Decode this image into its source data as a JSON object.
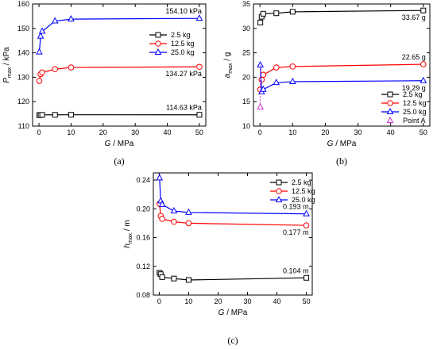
{
  "chart_data": [
    {
      "type": "line",
      "panel_label": "(a)",
      "xlabel_var": "G",
      "xlabel_unit": " / MPa",
      "ylabel_var": "P",
      "ylabel_sub": "max",
      "ylabel_unit": " / kPa",
      "xlim": [
        -2,
        52
      ],
      "ylim": [
        110,
        160
      ],
      "xticks": [
        0,
        10,
        20,
        30,
        40,
        50
      ],
      "yticks": [
        110,
        120,
        130,
        140,
        150,
        160
      ],
      "legend_position": "right",
      "series": [
        {
          "name": "2.5 kg",
          "color": "#000000",
          "marker": "square",
          "x": [
            0.1,
            0.5,
            1,
            5,
            10,
            50
          ],
          "y": [
            114.5,
            114.55,
            114.6,
            114.62,
            114.65,
            114.63
          ]
        },
        {
          "name": "12.5 kg",
          "color": "#ff0000",
          "marker": "circle",
          "x": [
            0.1,
            0.5,
            1,
            5,
            10,
            50
          ],
          "y": [
            128.5,
            131.3,
            132.0,
            133.3,
            134.0,
            134.27
          ]
        },
        {
          "name": "25.0 kg",
          "color": "#0000ff",
          "marker": "triangle",
          "x": [
            0.1,
            0.5,
            1,
            5,
            10,
            50
          ],
          "y": [
            140.3,
            146.8,
            148.8,
            153.0,
            153.8,
            154.1
          ]
        }
      ],
      "annotations": [
        {
          "text": "154.10 kPa",
          "x": 50,
          "y": 154.1,
          "side": "above"
        },
        {
          "text": "134.27 kPa",
          "x": 50,
          "y": 134.27,
          "side": "below"
        },
        {
          "text": "114.63 kPa",
          "x": 50,
          "y": 114.63,
          "side": "above"
        }
      ]
    },
    {
      "type": "line",
      "panel_label": "(b)",
      "xlabel_var": "G",
      "xlabel_unit": " / MPa",
      "ylabel_var": "a",
      "ylabel_sub": "max",
      "ylabel_unit": " / g",
      "xlim": [
        -2,
        52
      ],
      "ylim": [
        10,
        35
      ],
      "xticks": [
        0,
        10,
        20,
        30,
        40,
        50
      ],
      "yticks": [
        10,
        15,
        20,
        25,
        30,
        35
      ],
      "legend_position": "bottom-right",
      "series": [
        {
          "name": "2.5 kg",
          "color": "#000000",
          "marker": "square",
          "x": [
            0.1,
            0.5,
            1,
            5,
            10,
            50
          ],
          "y": [
            31.2,
            32.4,
            33.0,
            33.1,
            33.4,
            33.67
          ]
        },
        {
          "name": "12.5 kg",
          "color": "#ff0000",
          "marker": "circle",
          "x": [
            0.1,
            0.5,
            1,
            5,
            10,
            50
          ],
          "y": [
            17.5,
            19.5,
            20.5,
            22.0,
            22.2,
            22.65
          ]
        },
        {
          "name": "25.0 kg",
          "color": "#0000ff",
          "marker": "triangle",
          "x": [
            0.1,
            0.5,
            1,
            5,
            10,
            50
          ],
          "y": [
            22.5,
            17.0,
            17.5,
            18.9,
            19.1,
            19.29
          ]
        },
        {
          "name": "Point A",
          "color": "#cc33cc",
          "marker": "triangle-open",
          "dashed_to_series": 2,
          "x": [
            0.1
          ],
          "y": [
            13.9
          ]
        }
      ],
      "annotations": [
        {
          "text": "33.67 g",
          "x": 50,
          "y": 33.67,
          "side": "below"
        },
        {
          "text": "22.65 g",
          "x": 50,
          "y": 22.65,
          "side": "above"
        },
        {
          "text": "19.29 g",
          "x": 50,
          "y": 19.29,
          "side": "below"
        }
      ]
    },
    {
      "type": "line",
      "panel_label": "(c)",
      "xlabel_var": "G",
      "xlabel_unit": " / MPa",
      "ylabel_var": "h",
      "ylabel_sub": "max",
      "ylabel_unit": " / m",
      "xlim": [
        -2,
        52
      ],
      "ylim": [
        0.08,
        0.25
      ],
      "xticks": [
        0,
        10,
        20,
        30,
        40,
        50
      ],
      "yticks": [
        0.08,
        0.12,
        0.16,
        0.2,
        0.24
      ],
      "ytick_labels": [
        "0.08",
        "0.12",
        "0.16",
        "0.20",
        "0.24"
      ],
      "legend_position": "top-right",
      "series": [
        {
          "name": "2.5 kg",
          "color": "#000000",
          "marker": "square",
          "x": [
            0.1,
            0.5,
            1,
            5,
            10,
            50
          ],
          "y": [
            0.111,
            0.109,
            0.105,
            0.103,
            0.101,
            0.104
          ]
        },
        {
          "name": "12.5 kg",
          "color": "#ff0000",
          "marker": "circle",
          "x": [
            0.1,
            0.5,
            1,
            5,
            10,
            50
          ],
          "y": [
            0.207,
            0.19,
            0.186,
            0.182,
            0.18,
            0.177
          ]
        },
        {
          "name": "25.0 kg",
          "color": "#0000ff",
          "marker": "triangle",
          "x": [
            0.1,
            0.5,
            1,
            5,
            10,
            50
          ],
          "y": [
            0.243,
            0.211,
            0.206,
            0.197,
            0.195,
            0.193
          ]
        }
      ],
      "annotations": [
        {
          "text": "0.193 m",
          "x": 50,
          "y": 0.193,
          "side": "above"
        },
        {
          "text": "0.177 m",
          "x": 50,
          "y": 0.177,
          "side": "below"
        },
        {
          "text": "0.104 m",
          "x": 50,
          "y": 0.104,
          "side": "above"
        }
      ]
    }
  ]
}
